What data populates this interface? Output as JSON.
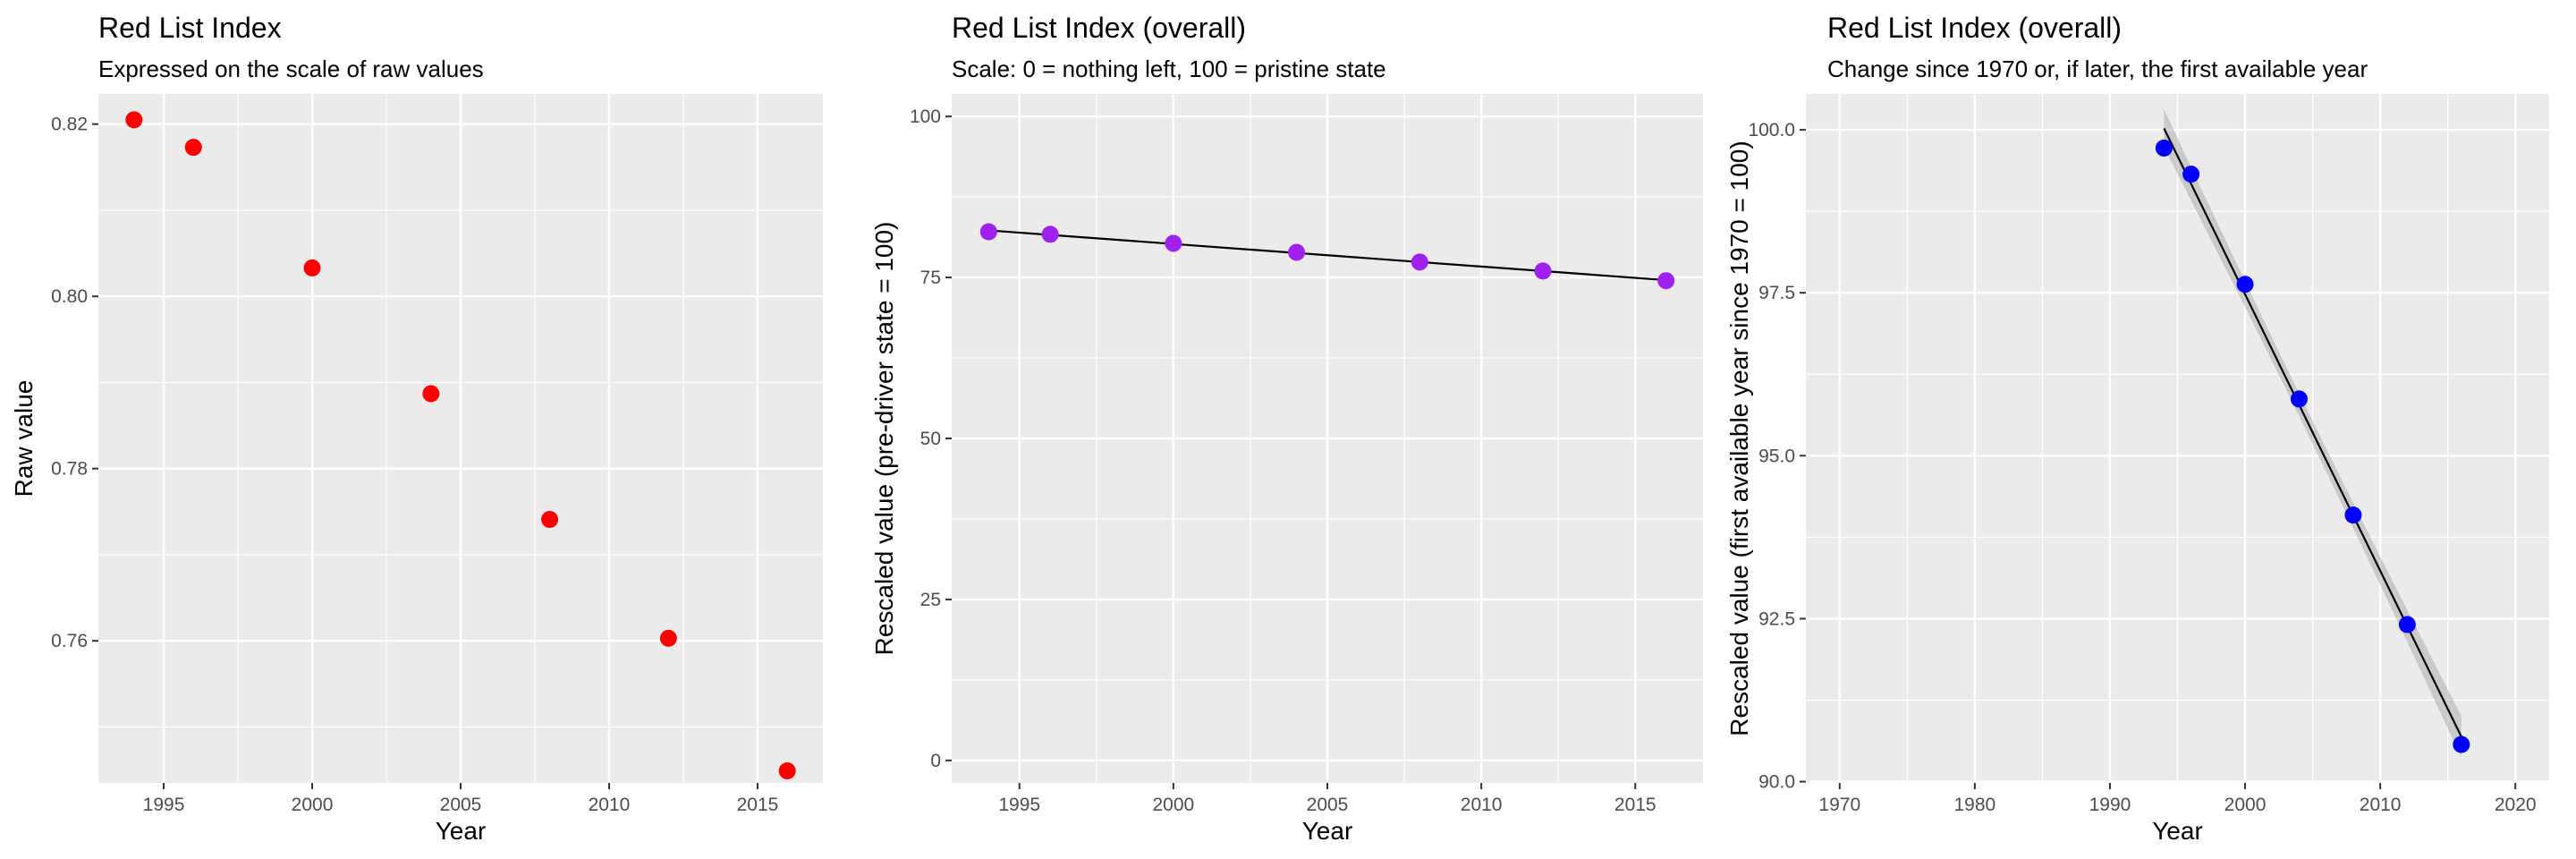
{
  "chart_data": [
    {
      "type": "scatter",
      "title": "Red List Index",
      "subtitle": "Expressed on the scale of raw values",
      "xlabel": "Year",
      "ylabel": "Raw value",
      "xlim": [
        1992.8,
        2017.2
      ],
      "ylim": [
        0.7435,
        0.8235
      ],
      "x_ticks": [
        1995,
        2000,
        2005,
        2010,
        2015
      ],
      "x_tick_labels": [
        "1995",
        "2000",
        "2005",
        "2010",
        "2015"
      ],
      "y_ticks": [
        0.76,
        0.78,
        0.8,
        0.82
      ],
      "y_tick_labels": [
        "0.76",
        "0.78",
        "0.80",
        "0.82"
      ],
      "grid": true,
      "point_color": "#ff0000",
      "series": [
        {
          "x": [
            1994,
            1996,
            2000,
            2004,
            2008,
            2012,
            2016
          ],
          "y": [
            0.8205,
            0.8173,
            0.8033,
            0.7887,
            0.7741,
            0.7603,
            0.7449
          ]
        }
      ]
    },
    {
      "type": "scatter",
      "title": "Red List Index (overall)",
      "subtitle": "Scale: 0 = nothing left, 100 = pristine state",
      "xlabel": "Year",
      "ylabel": "Rescaled value (pre-driver state = 100)",
      "xlim": [
        1992.8,
        2017.2
      ],
      "ylim": [
        -3.5,
        103.5
      ],
      "x_ticks": [
        1995,
        2000,
        2005,
        2010,
        2015
      ],
      "x_tick_labels": [
        "1995",
        "2000",
        "2005",
        "2010",
        "2015"
      ],
      "y_ticks": [
        0,
        25,
        50,
        75,
        100
      ],
      "y_tick_labels": [
        "0",
        "25",
        "50",
        "75",
        "100"
      ],
      "grid": true,
      "point_color": "#a020f0",
      "trend_line": true,
      "series": [
        {
          "x": [
            1994,
            1996,
            2000,
            2004,
            2008,
            2012,
            2016
          ],
          "y": [
            82.1,
            81.7,
            80.3,
            78.9,
            77.4,
            76.0,
            74.5
          ]
        }
      ]
    },
    {
      "type": "scatter",
      "title": "Red List Index (overall)",
      "subtitle": "Change since 1970 or, if later, the first available year",
      "xlabel": "Year",
      "ylabel": "Rescaled value (first available year since 1970 = 100)",
      "xlim": [
        1967.5,
        2022.5
      ],
      "ylim": [
        89.98,
        100.55
      ],
      "x_ticks": [
        1970,
        1980,
        1990,
        2000,
        2010,
        2020
      ],
      "x_tick_labels": [
        "1970",
        "1980",
        "1990",
        "2000",
        "2010",
        "2020"
      ],
      "y_ticks": [
        90.0,
        92.5,
        95.0,
        97.5,
        100.0
      ],
      "y_tick_labels": [
        "90.0",
        "92.5",
        "95.0",
        "97.5",
        "100.0"
      ],
      "grid": true,
      "point_color": "#0000ff",
      "trend_line": true,
      "confidence_band": true,
      "series": [
        {
          "x": [
            1994,
            1996,
            2000,
            2004,
            2008,
            2012,
            2016
          ],
          "y": [
            99.72,
            99.32,
            97.63,
            95.87,
            94.09,
            92.41,
            90.57
          ]
        }
      ]
    }
  ]
}
